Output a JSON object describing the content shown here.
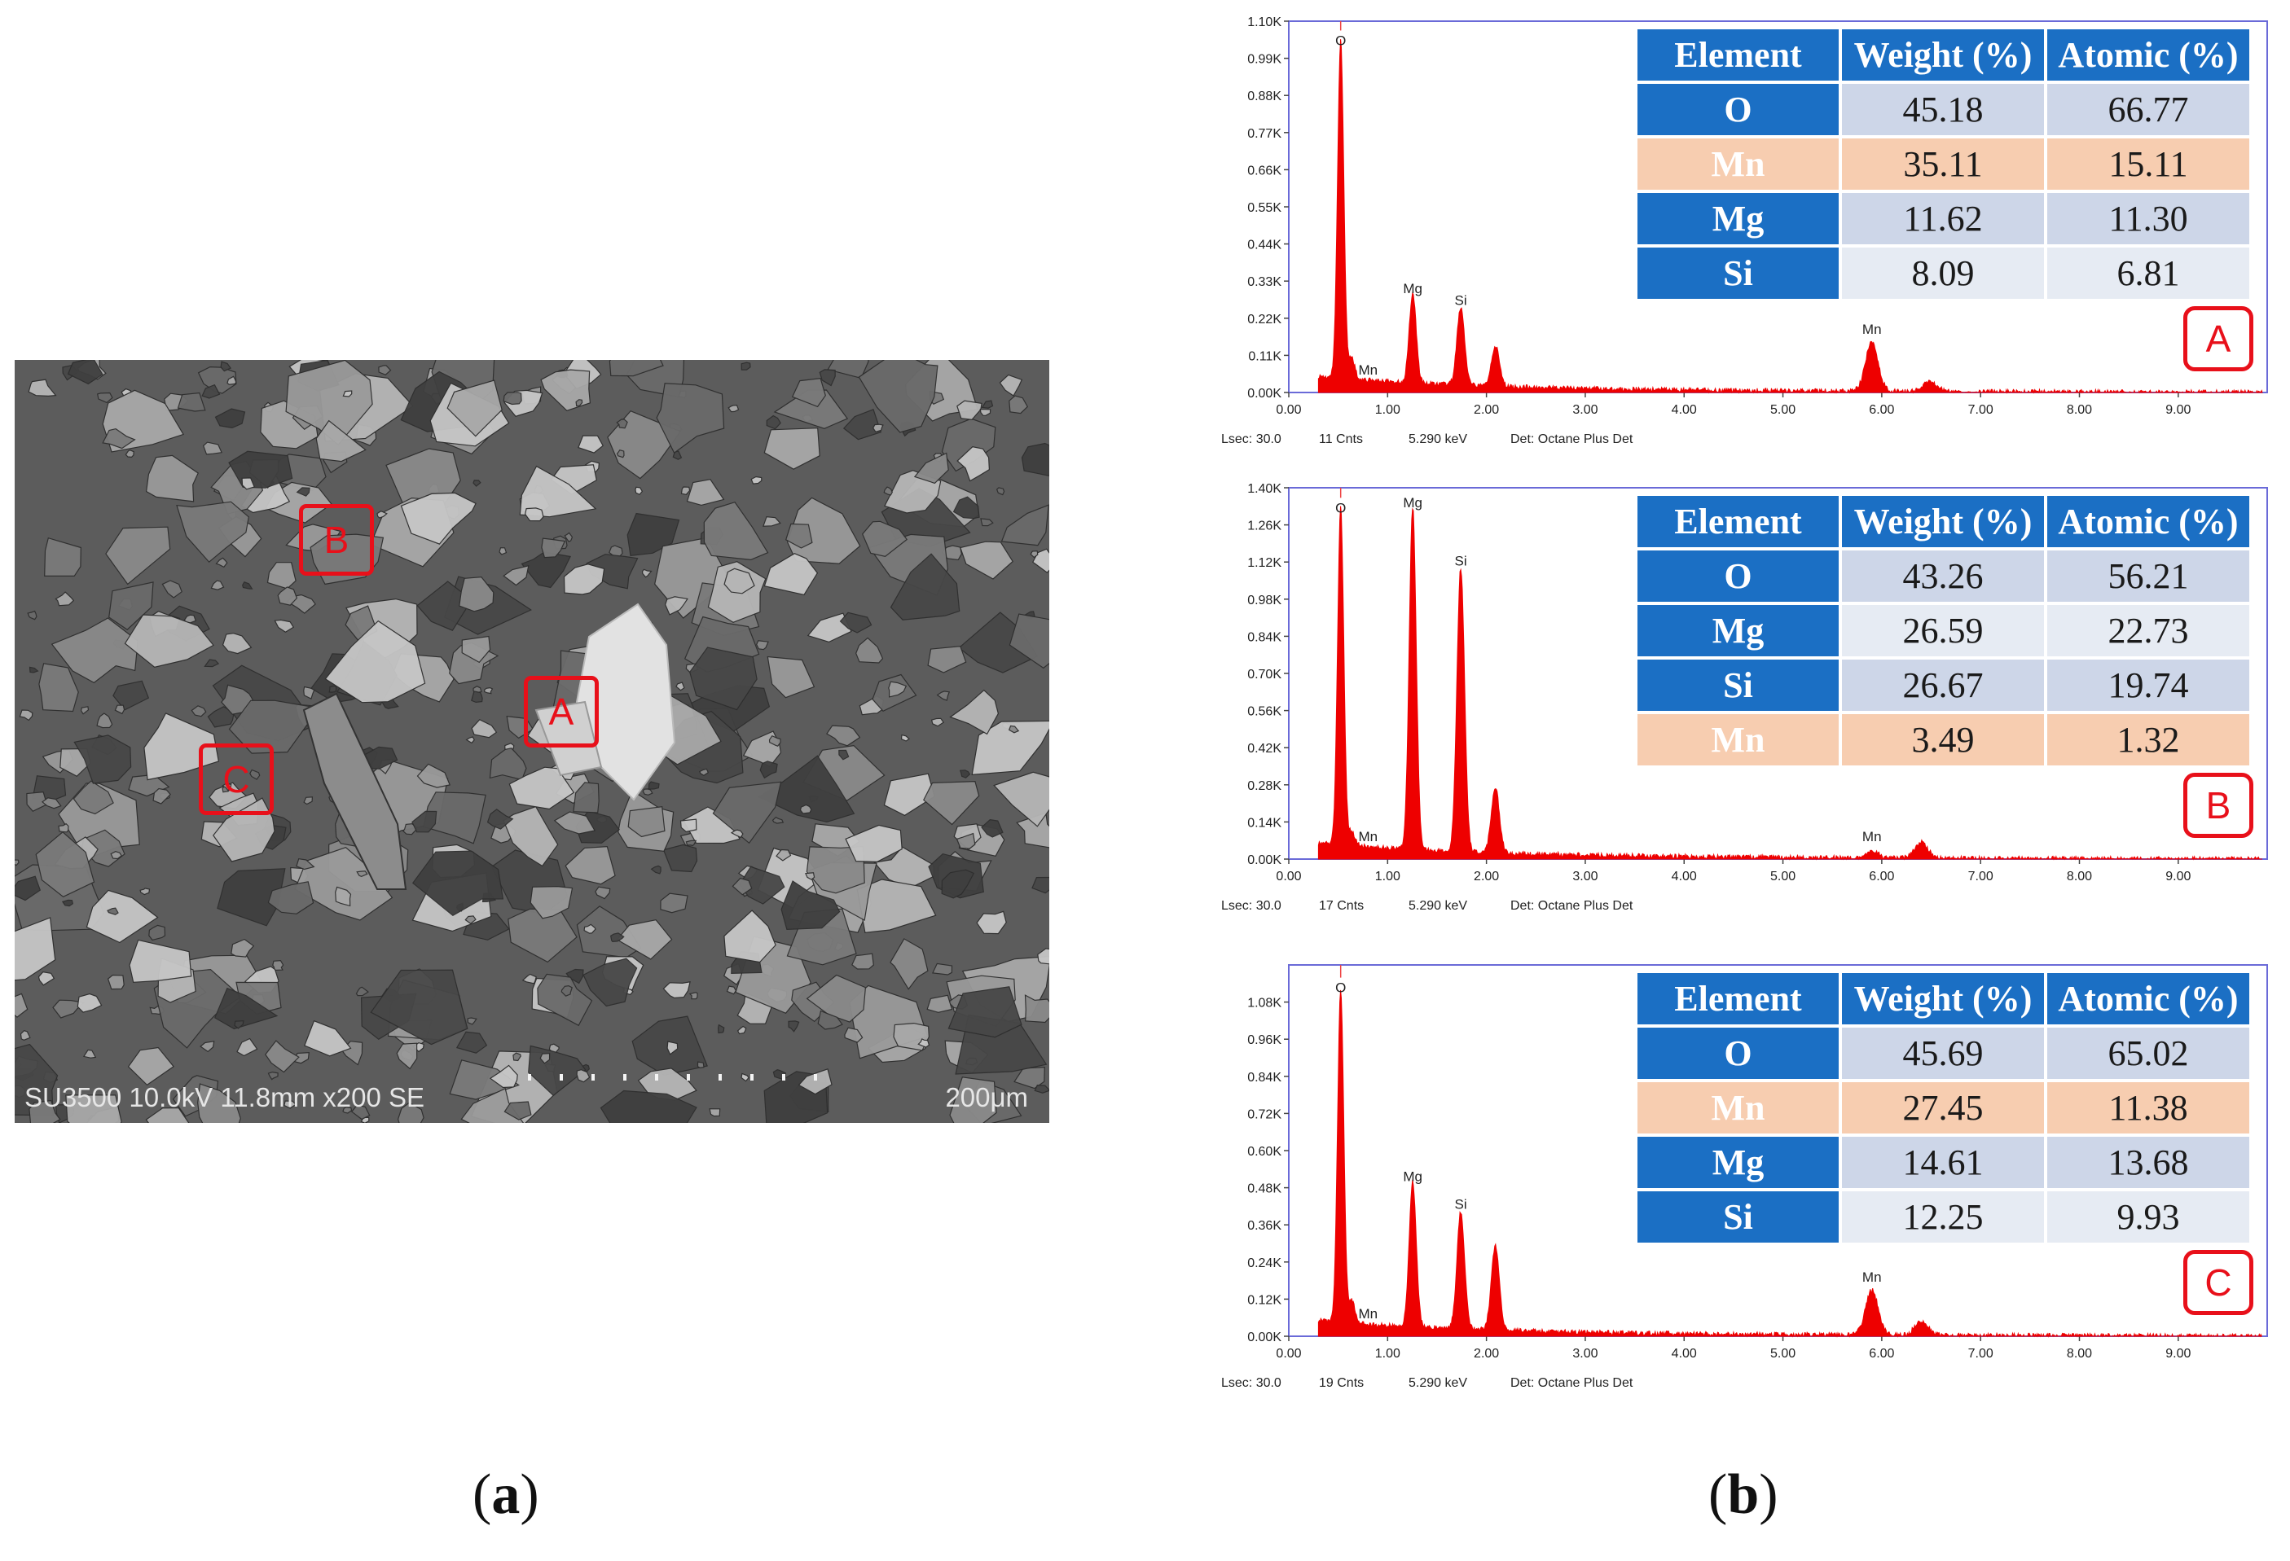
{
  "sem_panel": {
    "caption": "(a)",
    "caption_letter": "a",
    "info_text": "SU3500 10.0kV 11.8mm x200 SE",
    "scale_text": "200μm",
    "markers": [
      "A",
      "B",
      "C"
    ]
  },
  "eds_panel": {
    "caption": "(b)",
    "caption_letter": "b"
  },
  "colors": {
    "spectrum": "#ee0000",
    "table_header": "#1b6fc4",
    "table_highlight": "#f7cdb0",
    "table_value": "#cdd6e8",
    "marker": "#e8101a"
  },
  "chart_data": [
    {
      "type": "area",
      "badge": "A",
      "ylim": [
        0,
        1100
      ],
      "y_ticks": [
        "0.00K",
        "0.11K",
        "0.22K",
        "0.33K",
        "0.44K",
        "0.55K",
        "0.66K",
        "0.77K",
        "0.88K",
        "0.99K",
        "1.10K"
      ],
      "x_ticks": [
        "0.00",
        "1.00",
        "2.00",
        "3.00",
        "4.00",
        "5.00",
        "6.00",
        "7.00",
        "8.00",
        "9.00"
      ],
      "xlim": [
        0,
        9.9
      ],
      "peaks": [
        {
          "label": "O",
          "x": 0.525,
          "y": 1000
        },
        {
          "label": "Mn",
          "x": 0.637,
          "y": 60
        },
        {
          "label": "Mg",
          "x": 1.254,
          "y": 265
        },
        {
          "label": "Si",
          "x": 1.74,
          "y": 230
        },
        {
          "label": "",
          "x": 2.09,
          "y": 120
        },
        {
          "label": "Mn",
          "x": 5.9,
          "y": 145
        },
        {
          "label": "",
          "x": 6.49,
          "y": 30
        }
      ],
      "footer": {
        "lsec": "Lsec: 30.0",
        "cnts": "11 Cnts",
        "kev": "5.290 keV",
        "det": "Det: Octane Plus Det"
      },
      "table": {
        "headers": [
          "Element",
          "Weight (%)",
          "Atomic (%)"
        ],
        "rows": [
          {
            "element": "O",
            "weight": "45.18",
            "atomic": "66.77",
            "highlight": false
          },
          {
            "element": "Mn",
            "weight": "35.11",
            "atomic": "15.11",
            "highlight": true
          },
          {
            "element": "Mg",
            "weight": "11.62",
            "atomic": "11.30",
            "highlight": false
          },
          {
            "element": "Si",
            "weight": "8.09",
            "atomic": "6.81",
            "highlight": false
          }
        ]
      }
    },
    {
      "type": "area",
      "badge": "B",
      "ylim": [
        0,
        1400
      ],
      "y_ticks": [
        "0.00K",
        "0.14K",
        "0.28K",
        "0.42K",
        "0.56K",
        "0.70K",
        "0.84K",
        "0.98K",
        "1.12K",
        "1.26K",
        "1.40K"
      ],
      "x_ticks": [
        "0.00",
        "1.00",
        "2.00",
        "3.00",
        "4.00",
        "5.00",
        "6.00",
        "7.00",
        "8.00",
        "9.00"
      ],
      "xlim": [
        0,
        9.9
      ],
      "peaks": [
        {
          "label": "O",
          "x": 0.525,
          "y": 1270
        },
        {
          "label": "Mn",
          "x": 0.637,
          "y": 55
        },
        {
          "label": "Mg",
          "x": 1.254,
          "y": 1290
        },
        {
          "label": "Si",
          "x": 1.74,
          "y": 1070
        },
        {
          "label": "",
          "x": 2.09,
          "y": 250
        },
        {
          "label": "Mn",
          "x": 5.9,
          "y": 30
        },
        {
          "label": "",
          "x": 6.4,
          "y": 60
        }
      ],
      "footer": {
        "lsec": "Lsec: 30.0",
        "cnts": "17 Cnts",
        "kev": "5.290 keV",
        "det": "Det: Octane Plus Det"
      },
      "table": {
        "headers": [
          "Element",
          "Weight (%)",
          "Atomic (%)"
        ],
        "rows": [
          {
            "element": "O",
            "weight": "43.26",
            "atomic": "56.21",
            "highlight": false
          },
          {
            "element": "Mg",
            "weight": "26.59",
            "atomic": "22.73",
            "highlight": false
          },
          {
            "element": "Si",
            "weight": "26.67",
            "atomic": "19.74",
            "highlight": false
          },
          {
            "element": "Mn",
            "weight": "3.49",
            "atomic": "1.32",
            "highlight": true
          }
        ]
      }
    },
    {
      "type": "area",
      "badge": "C",
      "ylim": [
        0,
        1200
      ],
      "y_ticks": [
        "0.00K",
        "0.12K",
        "0.24K",
        "0.36K",
        "0.48K",
        "0.60K",
        "0.72K",
        "0.84K",
        "0.96K",
        "1.08K"
      ],
      "x_ticks": [
        "0.00",
        "1.00",
        "2.00",
        "3.00",
        "4.00",
        "5.00",
        "6.00",
        "7.00",
        "8.00",
        "9.00"
      ],
      "xlim": [
        0,
        9.9
      ],
      "peaks": [
        {
          "label": "O",
          "x": 0.525,
          "y": 1080
        },
        {
          "label": "Mn",
          "x": 0.637,
          "y": 70
        },
        {
          "label": "Mg",
          "x": 1.254,
          "y": 470
        },
        {
          "label": "Si",
          "x": 1.74,
          "y": 380
        },
        {
          "label": "",
          "x": 2.09,
          "y": 270
        },
        {
          "label": "Mn",
          "x": 5.9,
          "y": 145
        },
        {
          "label": "",
          "x": 6.4,
          "y": 45
        }
      ],
      "footer": {
        "lsec": "Lsec: 30.0",
        "cnts": "19 Cnts",
        "kev": "5.290 keV",
        "det": "Det: Octane Plus Det"
      },
      "table": {
        "headers": [
          "Element",
          "Weight (%)",
          "Atomic (%)"
        ],
        "rows": [
          {
            "element": "O",
            "weight": "45.69",
            "atomic": "65.02",
            "highlight": false
          },
          {
            "element": "Mn",
            "weight": "27.45",
            "atomic": "11.38",
            "highlight": true
          },
          {
            "element": "Mg",
            "weight": "14.61",
            "atomic": "13.68",
            "highlight": false
          },
          {
            "element": "Si",
            "weight": "12.25",
            "atomic": "9.93",
            "highlight": false
          }
        ]
      }
    }
  ]
}
